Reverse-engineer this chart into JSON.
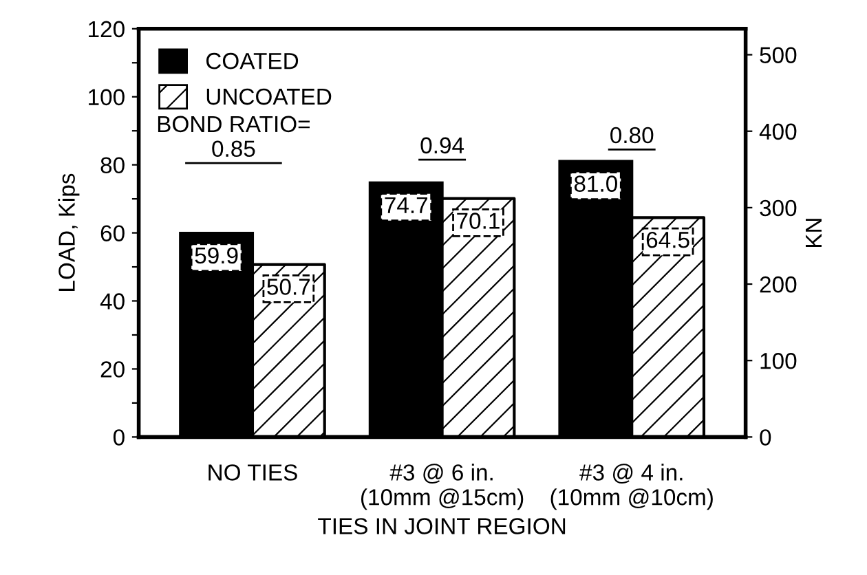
{
  "chart_data": {
    "type": "bar",
    "xlabel": "TIES IN JOINT REGION",
    "ylabel": "LOAD, Kips",
    "y2label": "KN",
    "categories": [
      "NO TIES",
      "#3 @ 6 in.\n(10mm @15cm)",
      "#3 @ 4 in.\n(10mm @10cm)"
    ],
    "series": [
      {
        "name": "COATED",
        "color": "#000000",
        "values": [
          59.9,
          74.7,
          81.0
        ],
        "value_labels": [
          "59.9",
          "74.7",
          "81.0"
        ]
      },
      {
        "name": "UNCOATED",
        "color": "#ffffff",
        "values": [
          50.7,
          70.1,
          64.5
        ],
        "value_labels": [
          "50.7",
          "70.1",
          "64.5"
        ]
      }
    ],
    "ylim": [
      0,
      120
    ],
    "yticks": [
      0,
      {
        "value": 10,
        "label": null
      },
      20,
      {
        "value": 30,
        "label": null
      },
      40,
      {
        "value": 50,
        "label": null
      },
      60,
      {
        "value": 70,
        "label": null
      },
      80,
      {
        "value": 90,
        "label": null
      },
      100,
      {
        "value": 110,
        "label": null
      },
      120
    ],
    "y2lim": [
      0,
      534
    ],
    "y2ticks": [
      0,
      100,
      200,
      300,
      400,
      500
    ],
    "legend": "top left",
    "grid": false,
    "annotations": [
      "BOND RATIO=\n0.85",
      "0.94",
      "0.80"
    ]
  }
}
